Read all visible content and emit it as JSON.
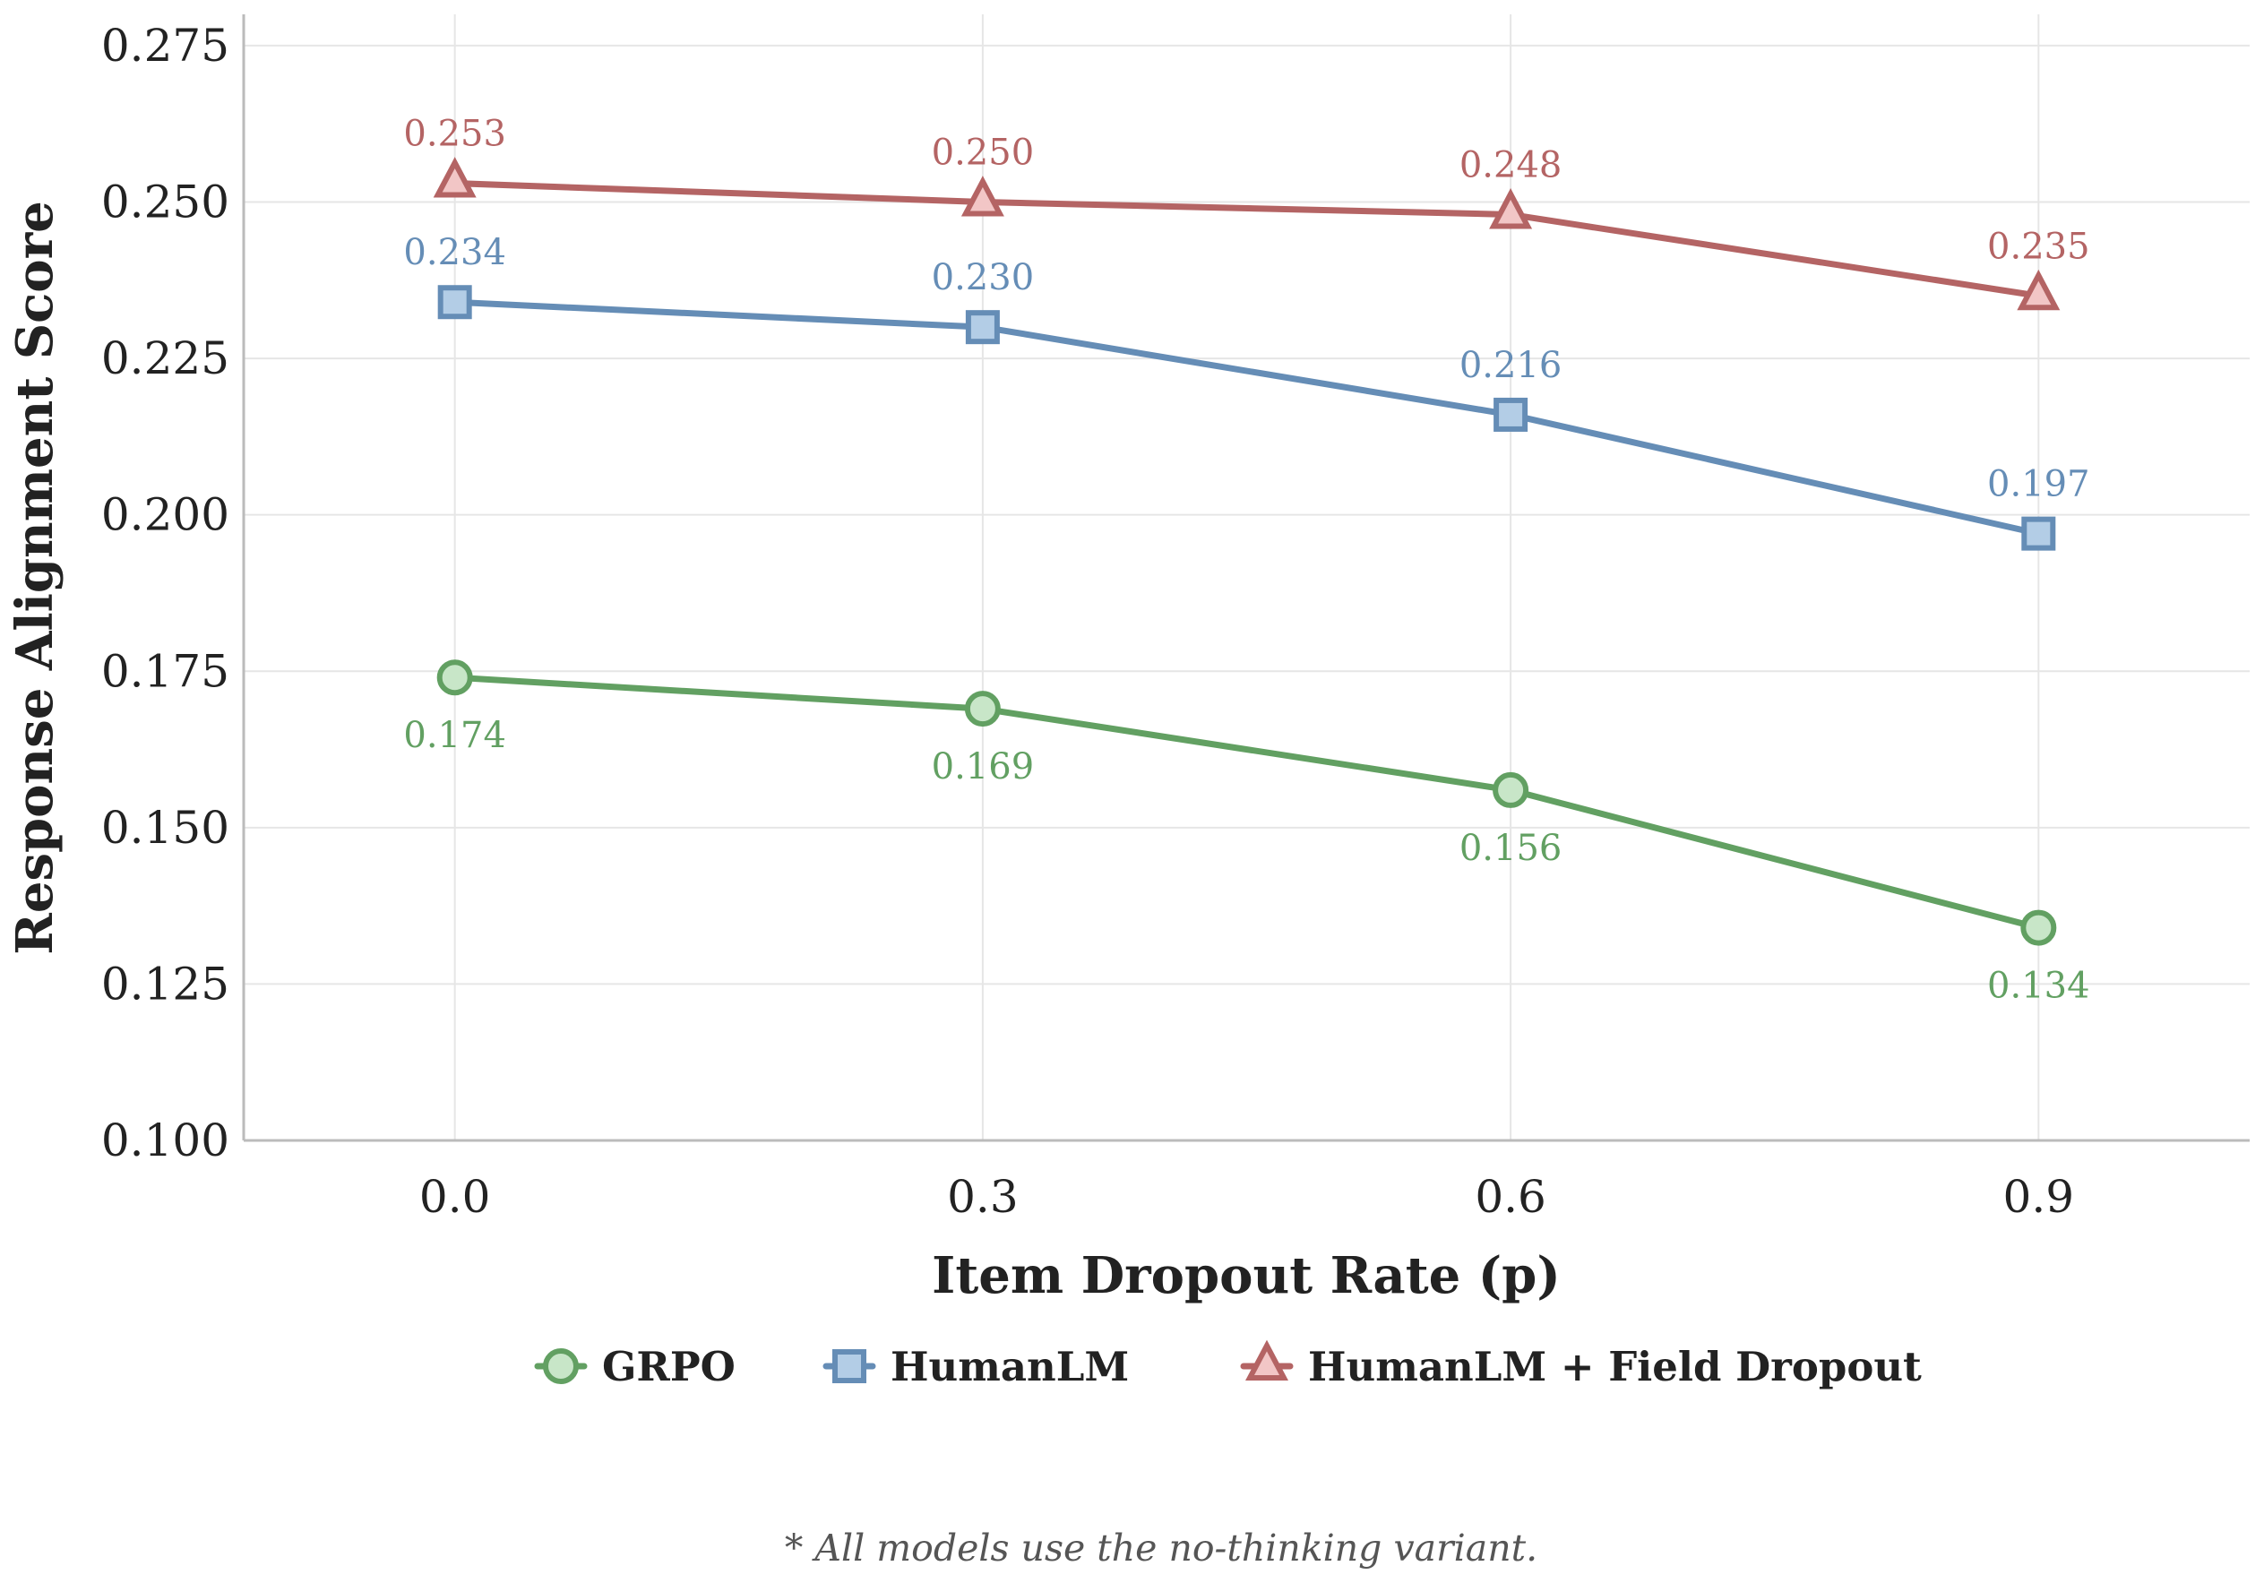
{
  "chart_data": {
    "type": "line",
    "title": "",
    "xlabel": "Item Dropout Rate (p)",
    "ylabel": "Response Alignment Score",
    "x": [
      0.0,
      0.3,
      0.6,
      0.9
    ],
    "x_tick_labels": [
      "0.0",
      "0.3",
      "0.6",
      "0.9"
    ],
    "xlim": [
      -0.12,
      1.02
    ],
    "ylim": [
      0.1,
      0.28
    ],
    "y_ticks": [
      0.1,
      0.125,
      0.15,
      0.175,
      0.2,
      0.225,
      0.25,
      0.275
    ],
    "y_tick_labels": [
      "0.100",
      "0.125",
      "0.150",
      "0.175",
      "0.200",
      "0.225",
      "0.250",
      "0.275"
    ],
    "grid": true,
    "legend_position": "bottom-center",
    "series": [
      {
        "name": "GRPO",
        "values": [
          0.174,
          0.169,
          0.156,
          0.134
        ],
        "labels": [
          "0.174",
          "0.169",
          "0.156",
          "0.134"
        ],
        "marker": "circle",
        "color": "#62a062",
        "fill": "#c8e6c8",
        "label_position": "below"
      },
      {
        "name": "HumanLM",
        "values": [
          0.234,
          0.23,
          0.216,
          0.197
        ],
        "labels": [
          "0.234",
          "0.230",
          "0.216",
          "0.197"
        ],
        "marker": "square",
        "color": "#658db6",
        "fill": "#b3cde6",
        "label_position": "above"
      },
      {
        "name": "HumanLM + Field Dropout",
        "values": [
          0.253,
          0.25,
          0.248,
          0.235
        ],
        "labels": [
          "0.253",
          "0.250",
          "0.248",
          "0.235"
        ],
        "marker": "triangle",
        "color": "#b46464",
        "fill": "#f2c6c6",
        "label_position": "above"
      }
    ],
    "footnote": "* All models use the no-thinking variant."
  }
}
